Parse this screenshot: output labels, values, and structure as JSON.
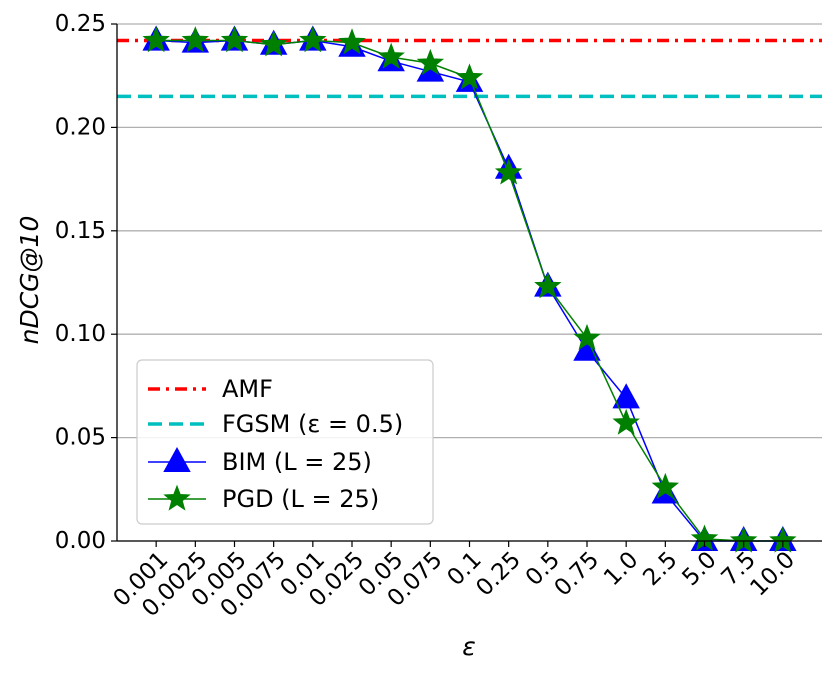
{
  "chart_data": {
    "type": "line",
    "title": "",
    "xlabel": "ε",
    "ylabel": "nDCG@10",
    "categories": [
      "0.001",
      "0.0025",
      "0.005",
      "0.0075",
      "0.01",
      "0.025",
      "0.05",
      "0.075",
      "0.1",
      "0.25",
      "0.5",
      "0.75",
      "1.0",
      "2.5",
      "5.0",
      "7.5",
      "10.0"
    ],
    "ylim": [
      0.0,
      0.25
    ],
    "yticks": [
      "0.00",
      "0.05",
      "0.10",
      "0.15",
      "0.20",
      "0.25"
    ],
    "grid": "horizontal",
    "legend_position": "lower-left",
    "reference_lines": [
      {
        "name": "AMF",
        "legend_label": "AMF",
        "value": 0.242,
        "color": "#ff0000",
        "style": "dashdot"
      },
      {
        "name": "FGSM",
        "legend_label": "FGSM (ε = 0.5)",
        "value": 0.215,
        "color": "#00bfbf",
        "style": "dashed"
      }
    ],
    "series": [
      {
        "name": "BIM",
        "legend_label": "BIM (L = 25)",
        "color": "#0000ff",
        "marker": "triangle",
        "values": [
          0.242,
          0.241,
          0.242,
          0.24,
          0.242,
          0.239,
          0.232,
          0.227,
          0.222,
          0.18,
          0.123,
          0.092,
          0.069,
          0.023,
          0.0,
          0.0,
          0.0
        ]
      },
      {
        "name": "PGD",
        "legend_label": "PGD (L = 25)",
        "color": "#008000",
        "marker": "star",
        "values": [
          0.242,
          0.242,
          0.242,
          0.24,
          0.242,
          0.241,
          0.234,
          0.231,
          0.224,
          0.178,
          0.123,
          0.098,
          0.057,
          0.026,
          0.001,
          0.0,
          0.0
        ]
      }
    ]
  }
}
